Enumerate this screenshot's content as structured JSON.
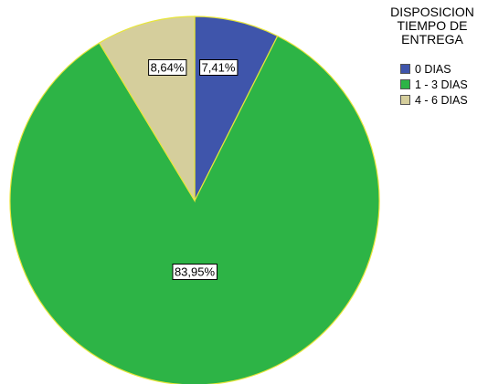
{
  "chart_data": {
    "type": "pie",
    "title": "",
    "legend": {
      "title_lines": [
        "DISPOSICION",
        "TIEMPO DE",
        "ENTREGA"
      ],
      "position": "top-right"
    },
    "slices": [
      {
        "label": "0 DIAS",
        "value": 7.41,
        "value_label": "7,41%",
        "color": "#3F55AB"
      },
      {
        "label": "1 - 3 DIAS",
        "value": 83.95,
        "value_label": "83,95%",
        "color": "#2DB446"
      },
      {
        "label": "4 - 6 DIAS",
        "value": 8.64,
        "value_label": "8,64%",
        "color": "#D5CE9C"
      }
    ],
    "slice_border_color": "#E8E63A"
  }
}
